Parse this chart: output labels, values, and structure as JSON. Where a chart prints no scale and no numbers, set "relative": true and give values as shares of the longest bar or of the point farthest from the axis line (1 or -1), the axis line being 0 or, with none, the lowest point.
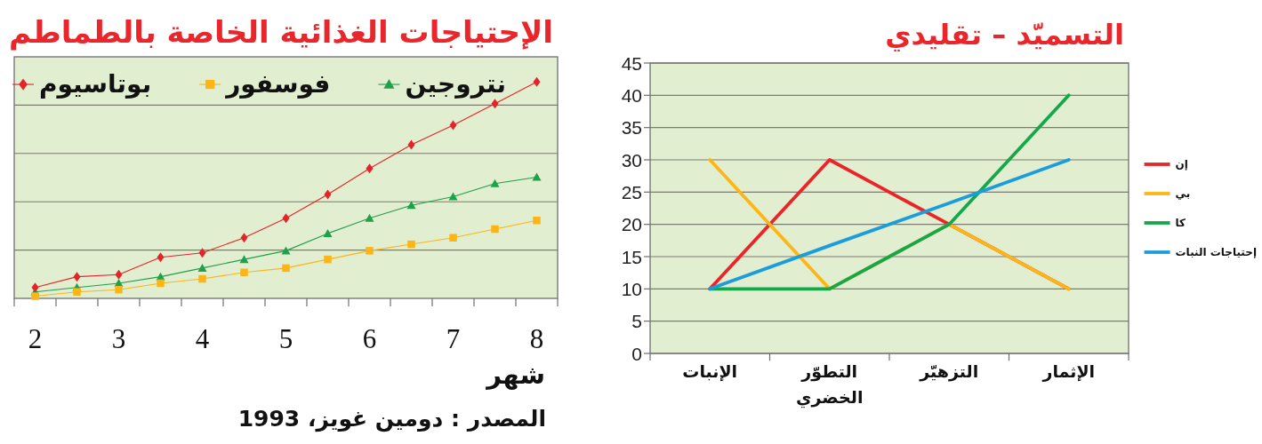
{
  "chart_data": [
    {
      "type": "line",
      "title": "الإحتياجات الغذائية الخاصة بالطماطم",
      "xlabel": "شهر",
      "annotations": [
        "المصدر : دومين غويز، 1993"
      ],
      "relative": true,
      "grid": "y",
      "legend": "top",
      "x": [
        2,
        2.5,
        3,
        3.5,
        4,
        4.5,
        5,
        5.5,
        6,
        6.5,
        7,
        7.5,
        8
      ],
      "xlim": [
        1.75,
        8.25
      ],
      "xticks": [
        {
          "value": 1.75,
          "label": null
        },
        2,
        {
          "value": 2.25,
          "label": null
        },
        {
          "value": 2.75,
          "label": null
        },
        3,
        {
          "value": 3.25,
          "label": null
        },
        {
          "value": 3.75,
          "label": null
        },
        4,
        {
          "value": 4.25,
          "label": null
        },
        {
          "value": 4.75,
          "label": null
        },
        5,
        {
          "value": 5.25,
          "label": null
        },
        {
          "value": 5.75,
          "label": null
        },
        6,
        {
          "value": 6.25,
          "label": null
        },
        {
          "value": 6.75,
          "label": null
        },
        7,
        {
          "value": 7.25,
          "label": null
        },
        {
          "value": 7.75,
          "label": null
        },
        8,
        {
          "value": 8.25,
          "label": null
        }
      ],
      "series": [
        {
          "name": "نتروجين",
          "color": "#1fa04a",
          "marker": "triangle",
          "values": [
            0.03,
            0.05,
            0.07,
            0.1,
            0.14,
            0.18,
            0.22,
            0.3,
            0.37,
            0.43,
            0.47,
            0.53,
            0.56
          ]
        },
        {
          "name": "فوسفور",
          "color": "#fbb516",
          "marker": "square",
          "values": [
            0.01,
            0.03,
            0.04,
            0.07,
            0.09,
            0.12,
            0.14,
            0.18,
            0.22,
            0.25,
            0.28,
            0.32,
            0.36
          ]
        },
        {
          "name": "بوتاسيوم",
          "color": "#e3242b",
          "marker": "diamond",
          "values": [
            0.05,
            0.1,
            0.11,
            0.19,
            0.21,
            0.28,
            0.37,
            0.48,
            0.6,
            0.71,
            0.8,
            0.9,
            1
          ]
        }
      ]
    },
    {
      "type": "line",
      "title": "التسميّد – تقليدي",
      "grid": "y",
      "legend": "right",
      "categories": [
        "الإنبات",
        "التطوّر الخضري",
        "التزهيّر",
        "الإثمار"
      ],
      "ylim": [
        0,
        45
      ],
      "yticks": [
        0,
        5,
        10,
        15,
        20,
        25,
        30,
        35,
        40,
        45
      ],
      "series": [
        {
          "name": "إن",
          "color": "#ea2429",
          "values": [
            10,
            30,
            20,
            10
          ]
        },
        {
          "name": "بي",
          "color": "#fcb716",
          "values": [
            30,
            10,
            20,
            10
          ]
        },
        {
          "name": "كا",
          "color": "#15a84a",
          "values": [
            10,
            10,
            20,
            40
          ]
        },
        {
          "name": "إحتياجات النبات",
          "color": "#1c9ddb",
          "values": [
            10,
            16.7,
            23.3,
            30
          ]
        }
      ]
    }
  ]
}
